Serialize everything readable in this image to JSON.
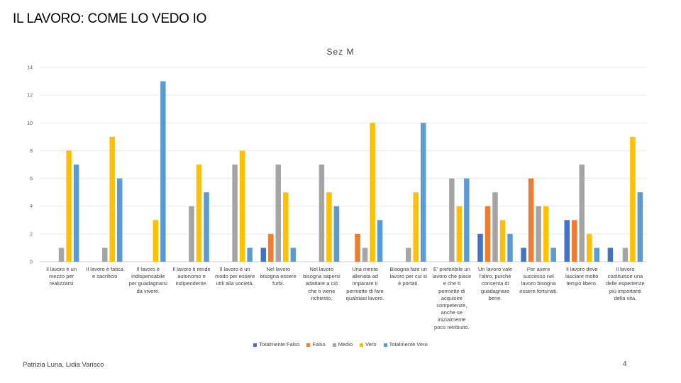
{
  "slide": {
    "title": "IL LAVORO: COME LO VEDO IO",
    "footer_authors": "Patrizia Luna, Lidia Varisco",
    "page_number": "4"
  },
  "chart_data": {
    "type": "bar",
    "title": "Sez M",
    "xlabel": "",
    "ylabel": "",
    "ylim": [
      0,
      14
    ],
    "yticks": [
      0,
      2,
      4,
      6,
      8,
      10,
      12,
      14
    ],
    "grid": true,
    "legend_position": "bottom",
    "categories": [
      "Il lavoro è un mezzo per realizzarsi",
      "Il lavoro è fatica e sacrificio",
      "Il lavoro è indispensabile per guadagnarsi da vivere.",
      "Il lavoro ti rende autonomo e indipendente.",
      "Il lavoro è un modo per essere utili alla società.",
      "Nel lavoro bisogna essere furbi.",
      "Nel lavoro bisogna sapersi adattare a ciò che ti viene richiesto.",
      "Una mente allenata ad imparare ti permette di fare qualsiasi lavoro.",
      "Bisogna fare un lavoro per cui si è portati.",
      "E' preferibile un lavoro che piace e che ti permette di acquisire competenze, anche se inizialmente poco retribuito.",
      "Un lavoro vale l'altro, purchè consenta di guadagnare bene.",
      "Per avere successo nel lavoro bisogna essere fortunati.",
      "Il lavoro deve lasciare molto tempo libero.",
      "Il lavoro costituisce una delle esperienze più importanti della vita."
    ],
    "category_lines": [
      [
        "Il lavoro è un",
        "mezzo per",
        "realizzarsi"
      ],
      [
        "Il lavoro è fatica",
        "e sacrificio"
      ],
      [
        "Il lavoro è",
        "indispensabile",
        "per guadagnarsi",
        "da vivere."
      ],
      [
        "Il lavoro ti rende",
        "autonomo e",
        "indipendente."
      ],
      [
        "Il lavoro è un",
        "modo per essere",
        "utili alla società."
      ],
      [
        "Nel lavoro",
        "bisogna essere",
        "furbi."
      ],
      [
        "Nel lavoro",
        "bisogna sapersi",
        "adattare a ciò",
        "che ti viene",
        "richiesto."
      ],
      [
        "Una mente",
        "allenata ad",
        "imparare ti",
        "permette di fare",
        "qualsiasi lavoro."
      ],
      [
        "Bisogna fare un",
        "lavoro per cui si",
        "è portati."
      ],
      [
        "E' preferibile un",
        "lavoro che piace",
        "e che ti",
        "permette di",
        "acquisire",
        "competenze,",
        "anche se",
        "inizialmente",
        "poco retribuito."
      ],
      [
        "Un lavoro vale",
        "l'altro, purchè",
        "consenta di",
        "guadagnare",
        "bene."
      ],
      [
        "Per avere",
        "successo nel",
        "lavoro bisogna",
        "essere fortunati."
      ],
      [
        "Il lavoro deve",
        "lasciare molto",
        "tempo libero."
      ],
      [
        "Il lavoro",
        "costituisce una",
        "delle esperienze",
        "più importanti",
        "della vita."
      ]
    ],
    "series": [
      {
        "name": "Totalmente Falso",
        "color": "#4472C4",
        "values": [
          0,
          0,
          0,
          0,
          0,
          1,
          0,
          0,
          0,
          0,
          2,
          1,
          3,
          1
        ]
      },
      {
        "name": "Falso",
        "color": "#ED7D31",
        "values": [
          0,
          0,
          0,
          0,
          0,
          2,
          0,
          2,
          0,
          0,
          4,
          6,
          3,
          0
        ]
      },
      {
        "name": "Medio",
        "color": "#A5A5A5",
        "values": [
          1,
          1,
          0,
          4,
          7,
          7,
          7,
          1,
          1,
          6,
          5,
          4,
          7,
          1
        ]
      },
      {
        "name": "Vero",
        "color": "#FFC000",
        "values": [
          8,
          9,
          3,
          7,
          8,
          5,
          5,
          10,
          5,
          4,
          3,
          4,
          2,
          9
        ]
      },
      {
        "name": "Totalmente Vero",
        "color": "#5B9BD5",
        "values": [
          7,
          6,
          13,
          5,
          1,
          1,
          4,
          3,
          10,
          6,
          2,
          1,
          1,
          5
        ]
      }
    ]
  }
}
